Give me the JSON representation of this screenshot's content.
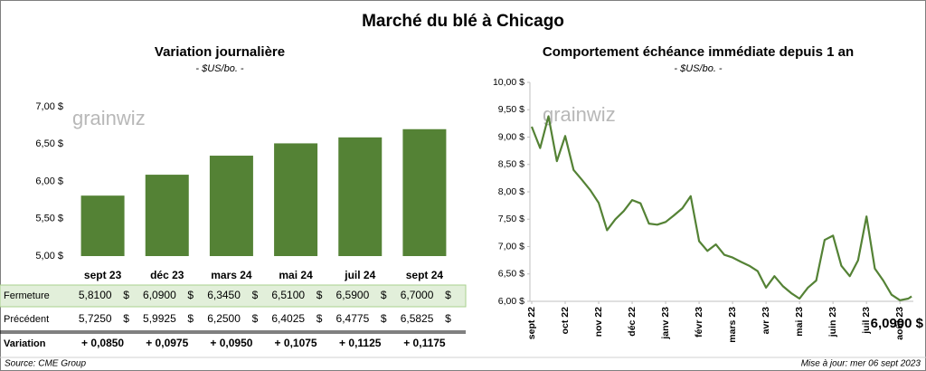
{
  "title": "Marché du blé à Chicago",
  "watermark": "grainwiz",
  "source": "Source: CME Group",
  "updated": "Mise à jour: mer 06 sept 2023",
  "chart_data": [
    {
      "type": "bar",
      "title": "Variation journalière",
      "subtitle": "- $US/bo. -",
      "categories": [
        "sept 23",
        "déc 23",
        "mars 24",
        "mai 24",
        "juil 24",
        "sept 24"
      ],
      "values": [
        5.81,
        6.09,
        6.345,
        6.51,
        6.59,
        6.7
      ],
      "color": "#548235",
      "ylim": [
        5,
        7
      ],
      "yticks": [
        {
          "value": 5,
          "label": "5,00 $"
        },
        {
          "value": 5.5,
          "label": "5,50 $"
        },
        {
          "value": 6,
          "label": "6,00 $"
        },
        {
          "value": 6.5,
          "label": "6,50 $"
        },
        {
          "value": 7,
          "label": "7,00 $"
        }
      ],
      "grid": false
    },
    {
      "type": "line",
      "title": "Comportement  échéance immédiate depuis 1 an",
      "subtitle": "- $US/bo. -",
      "x": [
        0,
        0.25,
        0.5,
        0.75,
        1,
        1.25,
        1.5,
        1.75,
        2,
        2.25,
        2.5,
        2.75,
        3,
        3.25,
        3.5,
        3.75,
        4,
        4.25,
        4.5,
        4.75,
        5,
        5.25,
        5.5,
        5.75,
        6,
        6.25,
        6.5,
        6.75,
        7,
        7.25,
        7.5,
        7.75,
        8,
        8.25,
        8.5,
        8.75,
        9,
        9.25,
        9.5,
        9.75,
        10,
        10.25,
        10.5,
        10.75,
        11,
        11.25,
        11.35
      ],
      "series": [
        {
          "color": "#548235",
          "values": [
            9.19,
            8.8,
            9.38,
            8.56,
            9.02,
            8.4,
            8.22,
            8.03,
            7.8,
            7.3,
            7.5,
            7.65,
            7.85,
            7.79,
            7.42,
            7.4,
            7.45,
            7.57,
            7.7,
            7.92,
            7.1,
            6.92,
            7.04,
            6.85,
            6.8,
            6.72,
            6.65,
            6.55,
            6.25,
            6.46,
            6.28,
            6.15,
            6.05,
            6.25,
            6.38,
            7.12,
            7.2,
            6.65,
            6.46,
            6.75,
            7.55,
            6.6,
            6.38,
            6.12,
            6.02,
            6.05,
            6.09
          ]
        }
      ],
      "xlim": [
        0,
        11.4
      ],
      "xticks": [
        {
          "value": 0,
          "label": "sept 22"
        },
        {
          "value": 1,
          "label": "oct 22"
        },
        {
          "value": 2,
          "label": "nov 22"
        },
        {
          "value": 3,
          "label": "déc 22"
        },
        {
          "value": 4,
          "label": "janv 23"
        },
        {
          "value": 5,
          "label": "févr 23"
        },
        {
          "value": 6,
          "label": "mars 23"
        },
        {
          "value": 7,
          "label": "avr 23"
        },
        {
          "value": 8,
          "label": "mai 23"
        },
        {
          "value": 9,
          "label": "juin 23"
        },
        {
          "value": 10,
          "label": "juil 23"
        },
        {
          "value": 11,
          "label": "août 23"
        }
      ],
      "ylim": [
        6,
        10
      ],
      "yticks": [
        {
          "value": 6,
          "label": "6,00 $"
        },
        {
          "value": 6.5,
          "label": "6,50 $"
        },
        {
          "value": 7,
          "label": "7,00 $"
        },
        {
          "value": 7.5,
          "label": "7,50 $"
        },
        {
          "value": 8,
          "label": "8,00 $"
        },
        {
          "value": 8.5,
          "label": "8,50 $"
        },
        {
          "value": 9,
          "label": "9,00 $"
        },
        {
          "value": 9.5,
          "label": "9,50 $"
        },
        {
          "value": 10,
          "label": "10,00 $"
        }
      ],
      "annotation": "6,0900 $"
    }
  ],
  "table": {
    "rows": [
      {
        "label": "Fermeture",
        "cells": [
          [
            "5,8100",
            "$"
          ],
          [
            "6,0900",
            "$"
          ],
          [
            "6,3450",
            "$"
          ],
          [
            "6,5100",
            "$"
          ],
          [
            "6,5900",
            "$"
          ],
          [
            "6,7000",
            "$"
          ]
        ]
      },
      {
        "label": "Précédent",
        "cells": [
          [
            "5,7250",
            "$"
          ],
          [
            "5,9925",
            "$"
          ],
          [
            "6,2500",
            "$"
          ],
          [
            "6,4025",
            "$"
          ],
          [
            "6,4775",
            "$"
          ],
          [
            "6,5825",
            "$"
          ]
        ]
      },
      {
        "label": "Variation",
        "cells": [
          [
            "+ 0,0850"
          ],
          [
            "+ 0,0975"
          ],
          [
            "+ 0,0950"
          ],
          [
            "+ 0,1075"
          ],
          [
            "+ 0,1125"
          ],
          [
            "+ 0,1175"
          ]
        ]
      }
    ]
  }
}
